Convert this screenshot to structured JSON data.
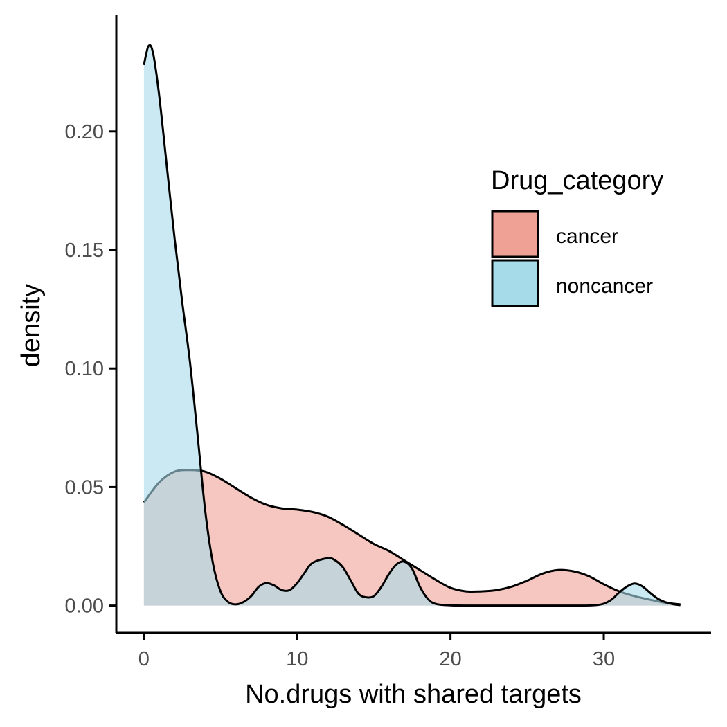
{
  "chart_data": {
    "type": "area",
    "title": "",
    "xlabel": "No.drugs with shared targets",
    "ylabel": "density",
    "xlim": [
      -1.8,
      37
    ],
    "ylim": [
      -0.0115,
      0.249
    ],
    "xticks": [
      0,
      10,
      20,
      30
    ],
    "xtick_labels": [
      "0",
      "10",
      "20",
      "30"
    ],
    "yticks": [
      0,
      0.05,
      0.1,
      0.15,
      0.2
    ],
    "ytick_labels": [
      "0.00",
      "0.05",
      "0.10",
      "0.15",
      "0.20"
    ],
    "grid": false,
    "legend": {
      "title": "Drug_category",
      "placement": "right-upper-inside"
    },
    "series": [
      {
        "name": "cancer",
        "color": "#f0a196",
        "points": [
          [
            0,
            0.0435
          ],
          [
            1,
            0.052
          ],
          [
            2,
            0.0565
          ],
          [
            3,
            0.0572
          ],
          [
            4,
            0.0565
          ],
          [
            5,
            0.0535
          ],
          [
            6,
            0.0495
          ],
          [
            7,
            0.0455
          ],
          [
            8,
            0.0425
          ],
          [
            9,
            0.041
          ],
          [
            10,
            0.0405
          ],
          [
            11,
            0.0395
          ],
          [
            12,
            0.0375
          ],
          [
            13,
            0.034
          ],
          [
            14,
            0.03
          ],
          [
            15,
            0.026
          ],
          [
            16,
            0.023
          ],
          [
            17,
            0.019
          ],
          [
            18,
            0.015
          ],
          [
            19,
            0.011
          ],
          [
            20,
            0.0075
          ],
          [
            21,
            0.006
          ],
          [
            22,
            0.006
          ],
          [
            23,
            0.0065
          ],
          [
            24,
            0.008
          ],
          [
            25,
            0.0105
          ],
          [
            26,
            0.0135
          ],
          [
            27,
            0.015
          ],
          [
            28,
            0.0145
          ],
          [
            29,
            0.0125
          ],
          [
            30,
            0.009
          ],
          [
            31,
            0.006
          ],
          [
            32,
            0.004
          ],
          [
            33,
            0.0025
          ],
          [
            34,
            0.0012
          ],
          [
            35,
            0.0005
          ]
        ]
      },
      {
        "name": "noncancer",
        "color": "#a6dbe9",
        "points": [
          [
            0,
            0.228
          ],
          [
            0.3,
            0.236
          ],
          [
            0.6,
            0.233
          ],
          [
            1,
            0.215
          ],
          [
            1.5,
            0.185
          ],
          [
            2,
            0.155
          ],
          [
            2.5,
            0.128
          ],
          [
            3,
            0.103
          ],
          [
            3.5,
            0.072
          ],
          [
            4,
            0.04
          ],
          [
            4.5,
            0.018
          ],
          [
            5,
            0.006
          ],
          [
            5.5,
            0.0015
          ],
          [
            6,
            0.0005
          ],
          [
            6.5,
            0.0015
          ],
          [
            7,
            0.004
          ],
          [
            7.5,
            0.008
          ],
          [
            8,
            0.0095
          ],
          [
            8.5,
            0.0085
          ],
          [
            9,
            0.0065
          ],
          [
            9.5,
            0.0065
          ],
          [
            10,
            0.0095
          ],
          [
            10.5,
            0.014
          ],
          [
            11,
            0.018
          ],
          [
            12,
            0.02
          ],
          [
            12.5,
            0.019
          ],
          [
            13,
            0.016
          ],
          [
            13.5,
            0.0105
          ],
          [
            14,
            0.005
          ],
          [
            14.5,
            0.0035
          ],
          [
            15,
            0.004
          ],
          [
            15.5,
            0.008
          ],
          [
            16,
            0.0135
          ],
          [
            16.5,
            0.0175
          ],
          [
            17,
            0.0185
          ],
          [
            17.5,
            0.0155
          ],
          [
            18,
            0.008
          ],
          [
            18.5,
            0.003
          ],
          [
            19,
            0.0008
          ],
          [
            20,
            0.0001
          ],
          [
            22,
            0
          ],
          [
            26,
            0
          ],
          [
            28.5,
            0
          ],
          [
            29.5,
            0.0002
          ],
          [
            30,
            0.0008
          ],
          [
            30.5,
            0.0025
          ],
          [
            31,
            0.0055
          ],
          [
            31.5,
            0.008
          ],
          [
            32,
            0.0093
          ],
          [
            32.5,
            0.0082
          ],
          [
            33,
            0.0055
          ],
          [
            33.5,
            0.003
          ],
          [
            34,
            0.0015
          ],
          [
            34.5,
            0.0006
          ],
          [
            35,
            0.0002
          ]
        ]
      }
    ]
  }
}
